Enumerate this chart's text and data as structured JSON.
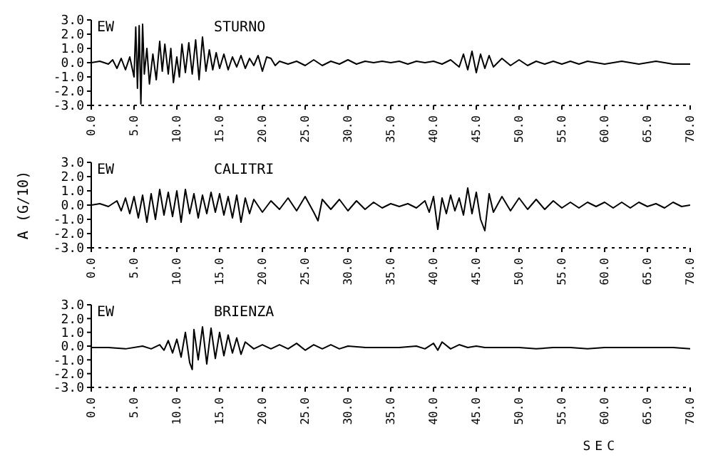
{
  "chart_data": [
    {
      "type": "line",
      "annotations": [
        "EW"
      ],
      "xlim": [
        0,
        70
      ],
      "ylim": [
        -3,
        3
      ],
      "xticks": [
        {
          "value": 0,
          "label": "0.0"
        },
        {
          "value": 5,
          "label": "5.0"
        },
        {
          "value": 10,
          "label": "10.0"
        },
        {
          "value": 15,
          "label": "15.0"
        },
        {
          "value": 20,
          "label": "20.0"
        },
        {
          "value": 25,
          "label": "25.0"
        },
        {
          "value": 30,
          "label": "30.0"
        },
        {
          "value": 35,
          "label": "35.0"
        },
        {
          "value": 40,
          "label": "40.0"
        },
        {
          "value": 45,
          "label": "45.0"
        },
        {
          "value": 50,
          "label": "50.0"
        },
        {
          "value": 55,
          "label": "55.0"
        },
        {
          "value": 60,
          "label": "60.0"
        },
        {
          "value": 65,
          "label": "65.0"
        },
        {
          "value": 70,
          "label": "70.0"
        }
      ],
      "yticks": [
        {
          "value": -3,
          "label": "-3.0"
        },
        {
          "value": -2,
          "label": "-2.0"
        },
        {
          "value": -1,
          "label": "-1.0"
        },
        {
          "value": 0,
          "label": "0.0"
        },
        {
          "value": 1,
          "label": "1.0"
        },
        {
          "value": 2,
          "label": "2.0"
        },
        {
          "value": 3,
          "label": "3.0"
        }
      ],
      "series": [
        {
          "name": "STURNO",
          "color": "#000000",
          "x": [
            0,
            1,
            2,
            2.5,
            3,
            3.5,
            4,
            4.5,
            5,
            5.2,
            5.4,
            5.6,
            5.8,
            6.0,
            6.2,
            6.5,
            6.8,
            7.2,
            7.6,
            8.0,
            8.3,
            8.6,
            9.0,
            9.3,
            9.6,
            10.0,
            10.3,
            10.6,
            11,
            11.4,
            11.8,
            12.2,
            12.6,
            13,
            13.4,
            13.8,
            14.2,
            14.6,
            15,
            15.5,
            16,
            16.5,
            17,
            17.5,
            18,
            18.5,
            19,
            19.5,
            20,
            20.5,
            21,
            21.5,
            22,
            23,
            24,
            25,
            26,
            27,
            28,
            29,
            30,
            31,
            32,
            33,
            34,
            35,
            36,
            37,
            38,
            39,
            40,
            41,
            42,
            43,
            43.5,
            44,
            44.5,
            45,
            45.5,
            46,
            46.5,
            47,
            48,
            49,
            50,
            51,
            52,
            53,
            54,
            55,
            56,
            57,
            58,
            60,
            62,
            64,
            66,
            68,
            70
          ],
          "values": [
            0,
            0.1,
            -0.1,
            0.2,
            -0.4,
            0.3,
            -0.5,
            0.4,
            -1.0,
            2.5,
            -1.8,
            2.6,
            -2.9,
            2.7,
            -0.8,
            1.0,
            -1.5,
            0.6,
            -1.2,
            1.5,
            -0.6,
            1.3,
            -0.8,
            1.0,
            -1.4,
            0.4,
            -1.0,
            1.3,
            -0.7,
            1.4,
            -0.8,
            1.6,
            -1.2,
            1.8,
            -0.6,
            0.9,
            -0.5,
            0.7,
            -0.4,
            0.6,
            -0.5,
            0.4,
            -0.3,
            0.5,
            -0.4,
            0.3,
            -0.2,
            0.5,
            -0.6,
            0.4,
            0.3,
            -0.2,
            0.1,
            -0.1,
            0.1,
            -0.2,
            0.2,
            -0.2,
            0.1,
            -0.1,
            0.2,
            -0.1,
            0.1,
            0,
            0.1,
            0,
            0.1,
            -0.1,
            0.1,
            0,
            0.1,
            -0.1,
            0.2,
            -0.3,
            0.6,
            -0.5,
            0.8,
            -0.7,
            0.6,
            -0.4,
            0.5,
            -0.3,
            0.3,
            -0.2,
            0.2,
            -0.2,
            0.1,
            -0.1,
            0.1,
            -0.1,
            0.1,
            -0.1,
            0.1,
            -0.1,
            0.1,
            -0.1,
            0.1,
            -0.1,
            -0.1
          ]
        }
      ]
    },
    {
      "type": "line",
      "annotations": [
        "EW"
      ],
      "ylabel": "A (G/10)",
      "xlim": [
        0,
        70
      ],
      "ylim": [
        -3,
        3
      ],
      "xticks": [
        {
          "value": 0,
          "label": "0.0"
        },
        {
          "value": 5,
          "label": "5.0"
        },
        {
          "value": 10,
          "label": "10.0"
        },
        {
          "value": 15,
          "label": "15.0"
        },
        {
          "value": 20,
          "label": "20.0"
        },
        {
          "value": 25,
          "label": "25.0"
        },
        {
          "value": 30,
          "label": "30.0"
        },
        {
          "value": 35,
          "label": "35.0"
        },
        {
          "value": 40,
          "label": "40.0"
        },
        {
          "value": 45,
          "label": "45.0"
        },
        {
          "value": 50,
          "label": "50.0"
        },
        {
          "value": 55,
          "label": "55.0"
        },
        {
          "value": 60,
          "label": "60.0"
        },
        {
          "value": 65,
          "label": "65.0"
        },
        {
          "value": 70,
          "label": "70.0"
        }
      ],
      "yticks": [
        {
          "value": -3,
          "label": "-3.0"
        },
        {
          "value": -2,
          "label": "-2.0"
        },
        {
          "value": -1,
          "label": "-1.0"
        },
        {
          "value": 0,
          "label": "0.0"
        },
        {
          "value": 1,
          "label": "1.0"
        },
        {
          "value": 2,
          "label": "2.0"
        },
        {
          "value": 3,
          "label": "3.0"
        }
      ],
      "series": [
        {
          "name": "CALITRI",
          "color": "#000000",
          "x": [
            0,
            1,
            2,
            3,
            3.5,
            4,
            4.5,
            5,
            5.5,
            6,
            6.5,
            7,
            7.5,
            8,
            8.5,
            9,
            9.5,
            10,
            10.5,
            11,
            11.5,
            12,
            12.5,
            13,
            13.5,
            14,
            14.5,
            15,
            15.5,
            16,
            16.5,
            17,
            17.5,
            18,
            18.5,
            19,
            20,
            21,
            22,
            23,
            24,
            25,
            26,
            26.5,
            27,
            28,
            29,
            30,
            31,
            32,
            33,
            34,
            35,
            36,
            37,
            38,
            39,
            39.5,
            40,
            40.5,
            41,
            41.5,
            42,
            42.5,
            43,
            43.5,
            44,
            44.5,
            45,
            45.5,
            46,
            46.5,
            47,
            48,
            49,
            50,
            51,
            52,
            53,
            54,
            55,
            56,
            57,
            58,
            59,
            60,
            61,
            62,
            63,
            64,
            65,
            66,
            67,
            68,
            69,
            70
          ],
          "values": [
            0,
            0.1,
            -0.1,
            0.3,
            -0.4,
            0.5,
            -0.6,
            0.6,
            -0.9,
            0.7,
            -1.2,
            0.8,
            -1.0,
            1.1,
            -0.7,
            0.9,
            -0.8,
            1.0,
            -1.2,
            1.1,
            -0.6,
            0.8,
            -0.9,
            0.7,
            -0.6,
            0.9,
            -0.5,
            0.8,
            -0.7,
            0.6,
            -0.9,
            0.7,
            -1.2,
            0.5,
            -0.6,
            0.4,
            -0.5,
            0.3,
            -0.3,
            0.5,
            -0.4,
            0.6,
            -0.5,
            -1.1,
            0.4,
            -0.3,
            0.4,
            -0.4,
            0.3,
            -0.3,
            0.2,
            -0.2,
            0.1,
            -0.1,
            0.1,
            -0.2,
            0.3,
            -0.5,
            0.6,
            -1.7,
            0.5,
            -0.6,
            0.7,
            -0.4,
            0.5,
            -0.7,
            1.2,
            -0.6,
            0.9,
            -1.0,
            -1.8,
            0.8,
            -0.5,
            0.6,
            -0.4,
            0.5,
            -0.3,
            0.4,
            -0.3,
            0.3,
            -0.2,
            0.2,
            -0.2,
            0.2,
            -0.1,
            0.2,
            -0.2,
            0.2,
            -0.2,
            0.2,
            -0.1,
            0.1,
            -0.2,
            0.2,
            -0.1,
            0
          ]
        }
      ]
    },
    {
      "type": "line",
      "annotations": [
        "EW"
      ],
      "xlabel": "SEC",
      "xlim": [
        0,
        70
      ],
      "ylim": [
        -3,
        3
      ],
      "xticks": [
        {
          "value": 0,
          "label": "0.0"
        },
        {
          "value": 5,
          "label": "5.0"
        },
        {
          "value": 10,
          "label": "10.0"
        },
        {
          "value": 15,
          "label": "15.0"
        },
        {
          "value": 20,
          "label": "20.0"
        },
        {
          "value": 25,
          "label": "25.0"
        },
        {
          "value": 30,
          "label": "30.0"
        },
        {
          "value": 35,
          "label": "35.0"
        },
        {
          "value": 40,
          "label": "40.0"
        },
        {
          "value": 45,
          "label": "45.0"
        },
        {
          "value": 50,
          "label": "50.0"
        },
        {
          "value": 55,
          "label": "55.0"
        },
        {
          "value": 60,
          "label": "60.0"
        },
        {
          "value": 65,
          "label": "65.0"
        },
        {
          "value": 70,
          "label": "70.0"
        }
      ],
      "yticks": [
        {
          "value": -3,
          "label": "-3.0"
        },
        {
          "value": -2,
          "label": "-2.0"
        },
        {
          "value": -1,
          "label": "-1.0"
        },
        {
          "value": 0,
          "label": "0.0"
        },
        {
          "value": 1,
          "label": "1.0"
        },
        {
          "value": 2,
          "label": "2.0"
        },
        {
          "value": 3,
          "label": "3.0"
        }
      ],
      "series": [
        {
          "name": "BRIENZA",
          "color": "#000000",
          "x": [
            0,
            2,
            4,
            6,
            7,
            8,
            8.5,
            9,
            9.5,
            10,
            10.5,
            11,
            11.5,
            11.8,
            12,
            12.5,
            13,
            13.5,
            14,
            14.5,
            15,
            15.5,
            16,
            16.5,
            17,
            17.5,
            18,
            19,
            20,
            21,
            22,
            23,
            24,
            25,
            26,
            27,
            28,
            29,
            30,
            32,
            34,
            36,
            38,
            39,
            40,
            40.5,
            41,
            42,
            43,
            44,
            45,
            46,
            48,
            50,
            52,
            54,
            56,
            58,
            60,
            62,
            64,
            66,
            68,
            70
          ],
          "values": [
            -0.1,
            -0.1,
            -0.2,
            0,
            -0.2,
            0.1,
            -0.3,
            0.4,
            -0.5,
            0.5,
            -0.8,
            1.0,
            -1.2,
            -1.7,
            1.2,
            -1.0,
            1.4,
            -1.3,
            1.3,
            -0.9,
            1.0,
            -0.7,
            0.8,
            -0.5,
            0.6,
            -0.6,
            0.3,
            -0.2,
            0.1,
            -0.2,
            0.1,
            -0.2,
            0.2,
            -0.3,
            0.1,
            -0.2,
            0.1,
            -0.2,
            0,
            -0.1,
            -0.1,
            -0.1,
            0,
            -0.2,
            0.2,
            -0.3,
            0.3,
            -0.2,
            0.1,
            -0.1,
            0,
            -0.1,
            -0.1,
            -0.1,
            -0.2,
            -0.1,
            -0.1,
            -0.2,
            -0.1,
            -0.1,
            -0.1,
            -0.1,
            -0.1,
            -0.2
          ]
        }
      ]
    }
  ]
}
